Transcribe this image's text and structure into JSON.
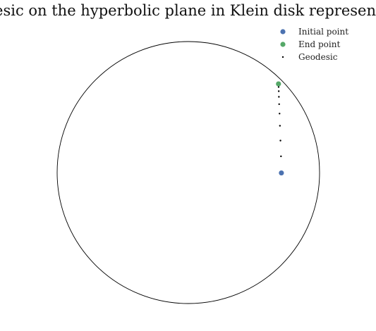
{
  "chart_data": {
    "type": "scatter",
    "title": "Geodesic on the hyperbolic plane in Klein disk representation",
    "xlabel": "",
    "ylabel": "",
    "xlim": [
      -1,
      1
    ],
    "ylim": [
      -1,
      1
    ],
    "grid": false,
    "axes_visible": false,
    "boundary": {
      "shape": "unit circle",
      "center": [
        0,
        0
      ],
      "radius": 1,
      "color": "#000000"
    },
    "legend_position": "top-right",
    "series": [
      {
        "name": "Initial point",
        "color": "#4c72b0",
        "marker": "large-dot",
        "points": [
          [
            0.709,
            -0.003
          ]
        ]
      },
      {
        "name": "End point",
        "color": "#55a868",
        "marker": "large-dot",
        "points": [
          [
            0.687,
            0.677
          ]
        ]
      },
      {
        "name": "Geodesic",
        "color": "#000000",
        "marker": "small-dot",
        "points": [
          [
            0.706,
            0.124
          ],
          [
            0.702,
            0.244
          ],
          [
            0.698,
            0.357
          ],
          [
            0.695,
            0.45
          ],
          [
            0.692,
            0.522
          ],
          [
            0.69,
            0.578
          ],
          [
            0.689,
            0.621
          ],
          [
            0.688,
            0.653
          ]
        ]
      }
    ]
  }
}
